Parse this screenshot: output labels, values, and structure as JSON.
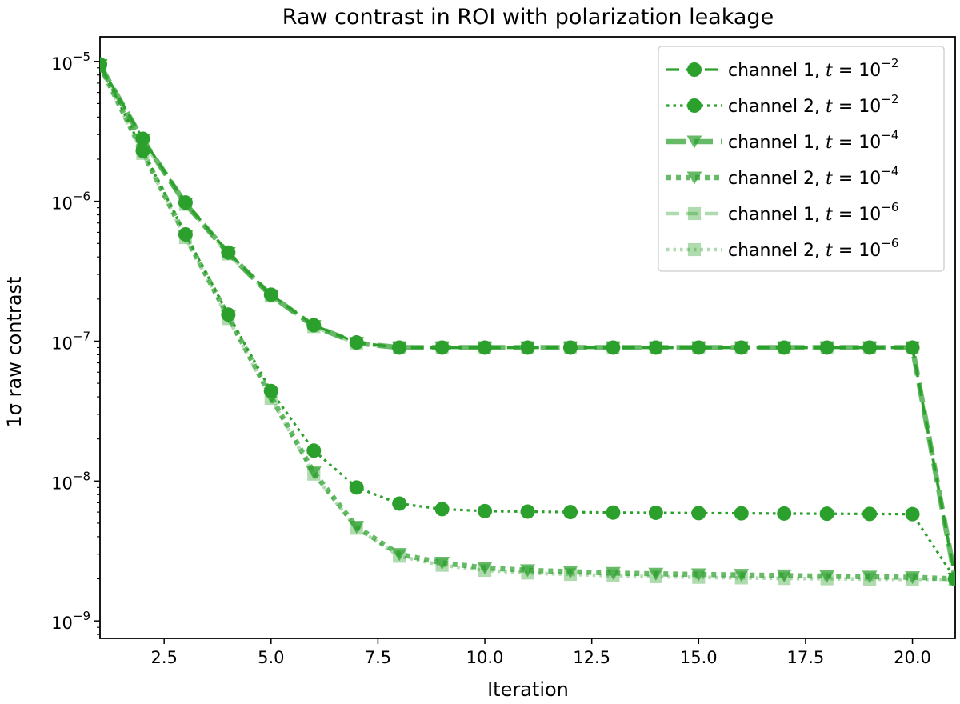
{
  "chart_data": {
    "type": "line",
    "title": "Raw contrast in ROI with polarization leakage",
    "xlabel": "Iteration",
    "ylabel": "1σ raw contrast",
    "xlim": [
      1,
      21
    ],
    "ylim": [
      7.5e-10,
      1.5e-05
    ],
    "yscale": "log",
    "grid": false,
    "legend_position": "top-right",
    "xticks": [
      2.5,
      5.0,
      7.5,
      10.0,
      12.5,
      15.0,
      17.5,
      20.0
    ],
    "xtick_labels": [
      "2.5",
      "5.0",
      "7.5",
      "10.0",
      "12.5",
      "15.0",
      "17.5",
      "20.0"
    ],
    "yticks": [
      1e-09,
      1e-08,
      1e-07,
      1e-06,
      1e-05
    ],
    "ytick_labels": [
      {
        "base": "10",
        "exp": "−9"
      },
      {
        "base": "10",
        "exp": "−8"
      },
      {
        "base": "10",
        "exp": "−7"
      },
      {
        "base": "10",
        "exp": "−6"
      },
      {
        "base": "10",
        "exp": "−5"
      }
    ],
    "x": [
      1,
      2,
      3,
      4,
      5,
      6,
      7,
      8,
      9,
      10,
      11,
      12,
      13,
      14,
      15,
      16,
      17,
      18,
      19,
      20,
      21
    ],
    "series": [
      {
        "name": "channel 1, t = 10^−2",
        "label_prefix": "channel 1, ",
        "label_var": "t",
        "label_exp": "−2",
        "color": "#2ca02c",
        "opacity": 1.0,
        "dash": "dashed",
        "marker": "circle",
        "line_width": 3.2,
        "values": [
          9.5e-06,
          2.8e-06,
          9.8e-07,
          4.3e-07,
          2.15e-07,
          1.3e-07,
          9.8e-08,
          9e-08,
          9e-08,
          9e-08,
          9e-08,
          9e-08,
          9e-08,
          9e-08,
          9e-08,
          9e-08,
          9e-08,
          9e-08,
          9e-08,
          9e-08,
          2e-09
        ]
      },
      {
        "name": "channel 2, t = 10^−2",
        "label_prefix": "channel 2, ",
        "label_var": "t",
        "label_exp": "−2",
        "color": "#2ca02c",
        "opacity": 1.0,
        "dash": "dotted",
        "marker": "circle",
        "line_width": 3.2,
        "values": [
          9.5e-06,
          2.3e-06,
          5.8e-07,
          1.55e-07,
          4.4e-08,
          1.65e-08,
          9e-09,
          6.9e-09,
          6.3e-09,
          6.1e-09,
          6.05e-09,
          6e-09,
          5.95e-09,
          5.93e-09,
          5.9e-09,
          5.88e-09,
          5.86e-09,
          5.84e-09,
          5.82e-09,
          5.8e-09,
          2e-09
        ]
      },
      {
        "name": "channel 1, t = 10^−4",
        "label_prefix": "channel 1, ",
        "label_var": "t",
        "label_exp": "−4",
        "color": "#2ca02c",
        "opacity": 0.72,
        "dash": "dashed",
        "marker": "triangle-down",
        "line_width": 6.5,
        "values": [
          9.4e-06,
          2.75e-06,
          9.6e-07,
          4.25e-07,
          2.12e-07,
          1.28e-07,
          9.7e-08,
          9e-08,
          9e-08,
          9e-08,
          9e-08,
          9e-08,
          9e-08,
          9e-08,
          9e-08,
          9e-08,
          9e-08,
          9e-08,
          9e-08,
          9e-08,
          2e-09
        ]
      },
      {
        "name": "channel 2, t = 10^−4",
        "label_prefix": "channel 2, ",
        "label_var": "t",
        "label_exp": "−4",
        "color": "#2ca02c",
        "opacity": 0.72,
        "dash": "dotted",
        "marker": "triangle-down",
        "line_width": 6.5,
        "values": [
          9.3e-06,
          2.25e-06,
          5.6e-07,
          1.5e-07,
          4e-08,
          1.15e-08,
          4.7e-09,
          3e-09,
          2.6e-09,
          2.4e-09,
          2.3e-09,
          2.25e-09,
          2.2e-09,
          2.17e-09,
          2.15e-09,
          2.13e-09,
          2.11e-09,
          2.09e-09,
          2.07e-09,
          2.05e-09,
          2e-09
        ]
      },
      {
        "name": "channel 1, t = 10^−6",
        "label_prefix": "channel 1, ",
        "label_var": "t",
        "label_exp": "−6",
        "color": "#2ca02c",
        "opacity": 0.38,
        "dash": "dashed",
        "marker": "square",
        "line_width": 4.5,
        "values": [
          9.3e-06,
          2.7e-06,
          9.5e-07,
          4.2e-07,
          2.1e-07,
          1.27e-07,
          9.6e-08,
          9e-08,
          9e-08,
          9e-08,
          9e-08,
          9e-08,
          9e-08,
          9e-08,
          9e-08,
          9e-08,
          9e-08,
          9e-08,
          9e-08,
          9e-08,
          2e-09
        ]
      },
      {
        "name": "channel 2, t = 10^−6",
        "label_prefix": "channel 2, ",
        "label_var": "t",
        "label_exp": "−6",
        "color": "#2ca02c",
        "opacity": 0.38,
        "dash": "dotted",
        "marker": "square",
        "line_width": 4.5,
        "values": [
          9.2e-06,
          2.2e-06,
          5.5e-07,
          1.45e-07,
          3.9e-08,
          1.12e-08,
          4.6e-09,
          2.9e-09,
          2.5e-09,
          2.3e-09,
          2.2e-09,
          2.15e-09,
          2.1e-09,
          2.07e-09,
          2.05e-09,
          2.03e-09,
          2.01e-09,
          2e-09,
          1.99e-09,
          1.98e-09,
          1.98e-09
        ]
      }
    ]
  }
}
